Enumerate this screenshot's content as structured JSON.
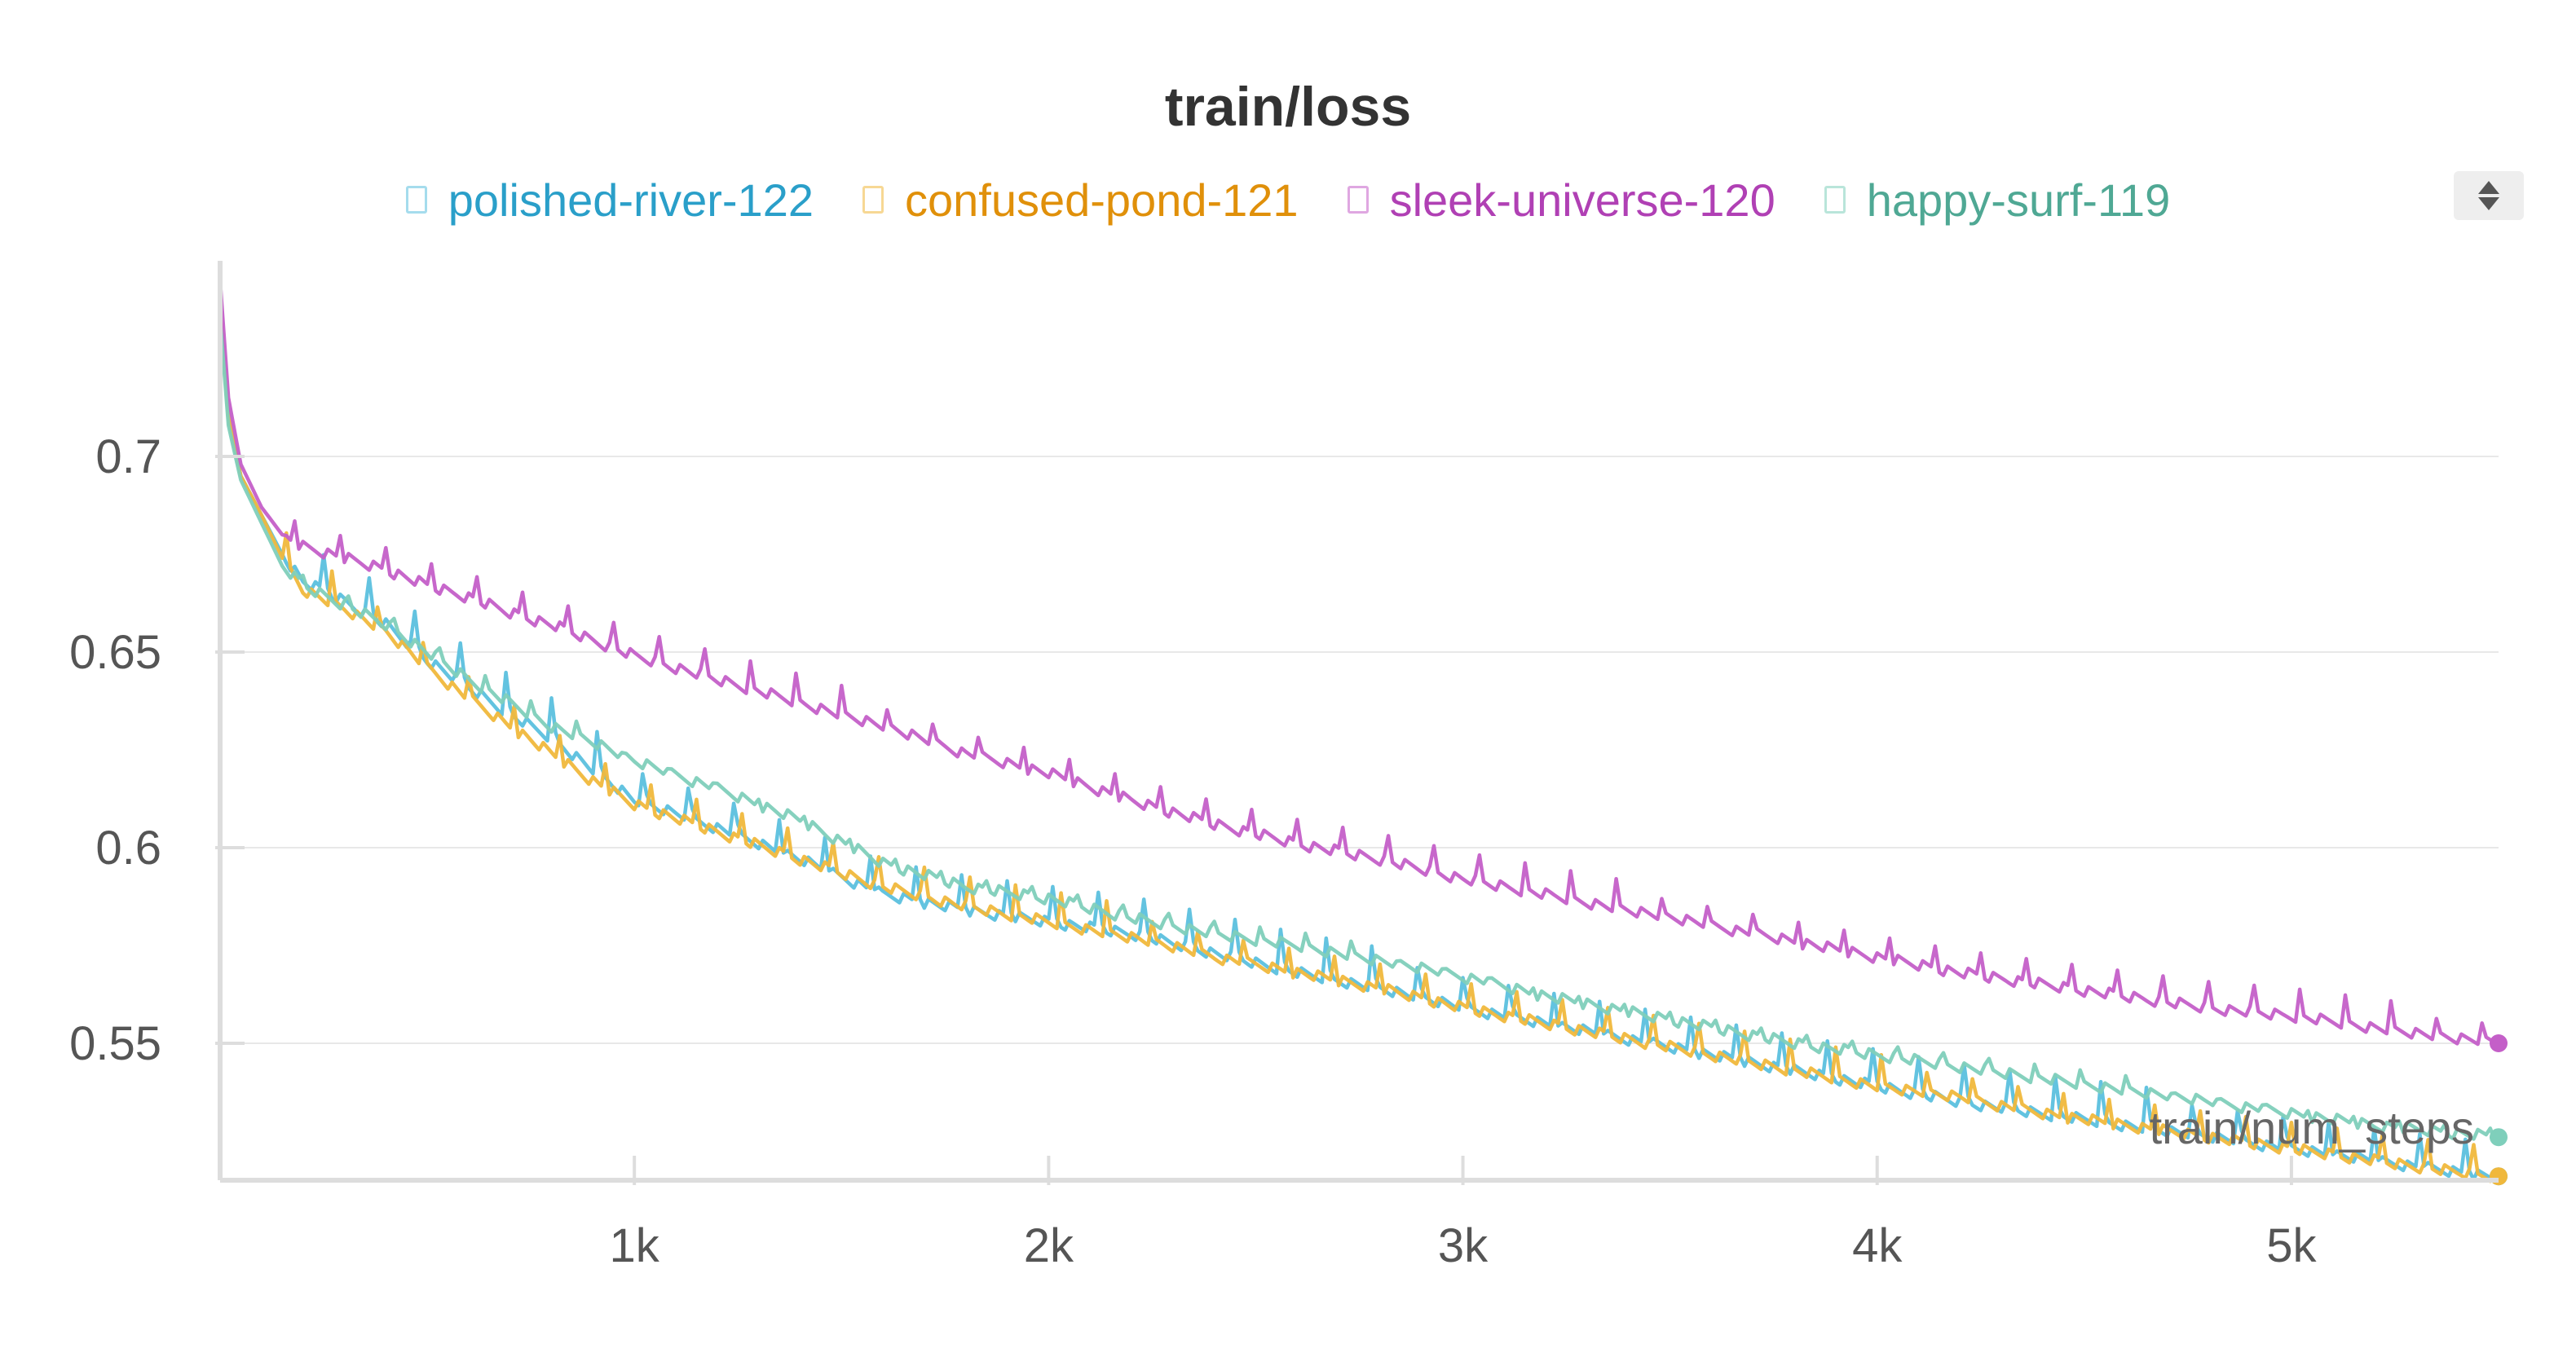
{
  "chart_data": {
    "type": "line",
    "title": "train/loss",
    "xlabel": "train/num_steps",
    "ylabel": "",
    "xlim": [
      0,
      5500
    ],
    "ylim": [
      0.515,
      0.75
    ],
    "x_ticks": [
      {
        "value": 1000,
        "label": "1k"
      },
      {
        "value": 2000,
        "label": "2k"
      },
      {
        "value": 3000,
        "label": "3k"
      },
      {
        "value": 4000,
        "label": "4k"
      },
      {
        "value": 5000,
        "label": "5k"
      }
    ],
    "y_ticks": [
      {
        "value": 0.7,
        "label": "0.7"
      },
      {
        "value": 0.65,
        "label": "0.65"
      },
      {
        "value": 0.6,
        "label": "0.6"
      },
      {
        "value": 0.55,
        "label": "0.55"
      }
    ],
    "grid": true,
    "legend_position": "top",
    "series": [
      {
        "name": "polished-river-122",
        "color": "#5bc0de",
        "legend_color": "#2a9fc9",
        "x": [
          0,
          20,
          50,
          100,
          150,
          200,
          300,
          400,
          500,
          600,
          700,
          800,
          900,
          1000,
          1200,
          1400,
          1600,
          1800,
          2000,
          2200,
          2400,
          2600,
          2800,
          3000,
          3200,
          3400,
          3600,
          3800,
          4000,
          4200,
          4400,
          4600,
          4800,
          5000,
          5200,
          5400,
          5500
        ],
        "y": [
          0.738,
          0.71,
          0.695,
          0.685,
          0.675,
          0.668,
          0.663,
          0.657,
          0.648,
          0.641,
          0.634,
          0.628,
          0.62,
          0.612,
          0.605,
          0.597,
          0.588,
          0.584,
          0.581,
          0.578,
          0.573,
          0.568,
          0.564,
          0.559,
          0.555,
          0.551,
          0.547,
          0.543,
          0.539,
          0.535,
          0.532,
          0.529,
          0.526,
          0.523,
          0.52,
          0.517,
          0.516
        ]
      },
      {
        "name": "confused-pond-121",
        "color": "#f0b83c",
        "legend_color": "#e0900a",
        "x": [
          0,
          20,
          50,
          100,
          150,
          200,
          300,
          400,
          500,
          600,
          700,
          800,
          900,
          1000,
          1200,
          1400,
          1600,
          1800,
          2000,
          2200,
          2400,
          2600,
          2800,
          3000,
          3200,
          3400,
          3600,
          3800,
          4000,
          4200,
          4400,
          4600,
          4800,
          5000,
          5200,
          5400,
          5500
        ],
        "y": [
          0.738,
          0.71,
          0.695,
          0.685,
          0.674,
          0.666,
          0.661,
          0.655,
          0.646,
          0.638,
          0.631,
          0.624,
          0.617,
          0.611,
          0.604,
          0.597,
          0.59,
          0.585,
          0.581,
          0.577,
          0.572,
          0.568,
          0.564,
          0.559,
          0.555,
          0.551,
          0.547,
          0.543,
          0.539,
          0.536,
          0.532,
          0.529,
          0.526,
          0.523,
          0.52,
          0.517,
          0.516
        ]
      },
      {
        "name": "sleek-universe-120",
        "color": "#c45fc8",
        "legend_color": "#b040b4",
        "x": [
          0,
          20,
          50,
          100,
          150,
          200,
          300,
          400,
          500,
          600,
          700,
          800,
          900,
          1000,
          1200,
          1400,
          1600,
          1800,
          2000,
          2200,
          2400,
          2600,
          2800,
          3000,
          3200,
          3400,
          3600,
          3800,
          4000,
          4200,
          4400,
          4600,
          4800,
          5000,
          5200,
          5400,
          5500
        ],
        "y": [
          0.745,
          0.715,
          0.698,
          0.687,
          0.68,
          0.677,
          0.674,
          0.671,
          0.667,
          0.664,
          0.66,
          0.657,
          0.653,
          0.649,
          0.643,
          0.637,
          0.631,
          0.624,
          0.619,
          0.612,
          0.606,
          0.601,
          0.597,
          0.592,
          0.588,
          0.584,
          0.58,
          0.576,
          0.572,
          0.568,
          0.565,
          0.562,
          0.559,
          0.557,
          0.554,
          0.551,
          0.55
        ]
      },
      {
        "name": "happy-surf-119",
        "color": "#7fcfbb",
        "legend_color": "#4fa894",
        "x": [
          0,
          20,
          50,
          100,
          150,
          200,
          300,
          400,
          500,
          600,
          700,
          800,
          900,
          1000,
          1200,
          1400,
          1600,
          1800,
          2000,
          2200,
          2400,
          2600,
          2800,
          3000,
          3200,
          3400,
          3600,
          3800,
          4000,
          4200,
          4400,
          4600,
          4800,
          5000,
          5200,
          5400,
          5500
        ],
        "y": [
          0.735,
          0.708,
          0.694,
          0.683,
          0.672,
          0.667,
          0.662,
          0.657,
          0.65,
          0.643,
          0.637,
          0.631,
          0.627,
          0.622,
          0.615,
          0.607,
          0.596,
          0.59,
          0.587,
          0.582,
          0.578,
          0.575,
          0.571,
          0.567,
          0.562,
          0.558,
          0.554,
          0.55,
          0.547,
          0.544,
          0.541,
          0.538,
          0.535,
          0.532,
          0.529,
          0.527,
          0.526
        ]
      }
    ]
  }
}
